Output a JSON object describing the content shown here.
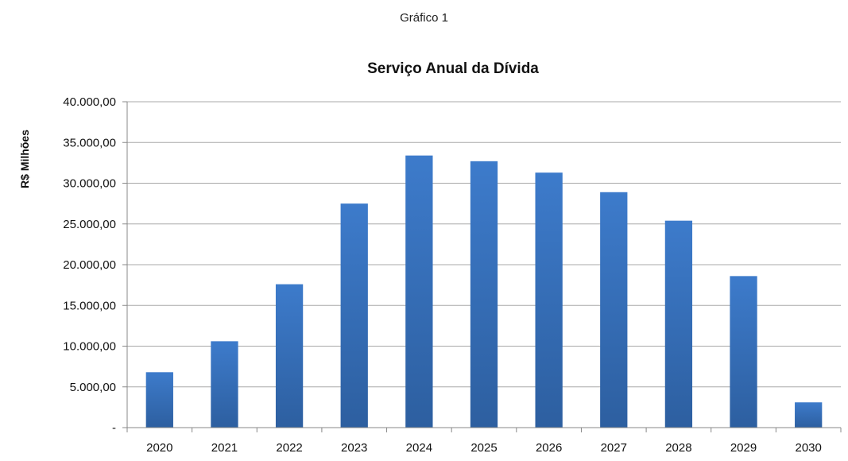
{
  "caption": "Gráfico 1",
  "chart_data": {
    "type": "bar",
    "title": "Serviço Anual da Dívida",
    "xlabel": "",
    "ylabel": "R$ Milhões",
    "categories": [
      "2020",
      "2021",
      "2022",
      "2023",
      "2024",
      "2025",
      "2026",
      "2027",
      "2028",
      "2029",
      "2030"
    ],
    "values": [
      6800,
      10600,
      17600,
      27500,
      33400,
      32700,
      31300,
      28900,
      25400,
      18600,
      3100
    ],
    "ylim": [
      0,
      40000
    ],
    "yticks": [
      0,
      5000,
      10000,
      15000,
      20000,
      25000,
      30000,
      35000,
      40000
    ],
    "ytick_labels": [
      "-",
      "5.000,00",
      "10.000,00",
      "15.000,00",
      "20.000,00",
      "25.000,00",
      "30.000,00",
      "35.000,00",
      "40.000,00"
    ],
    "grid": true,
    "legend": "none",
    "bar_color": "#3d7bcb",
    "bar_color_dark": "#2d5fa0"
  }
}
